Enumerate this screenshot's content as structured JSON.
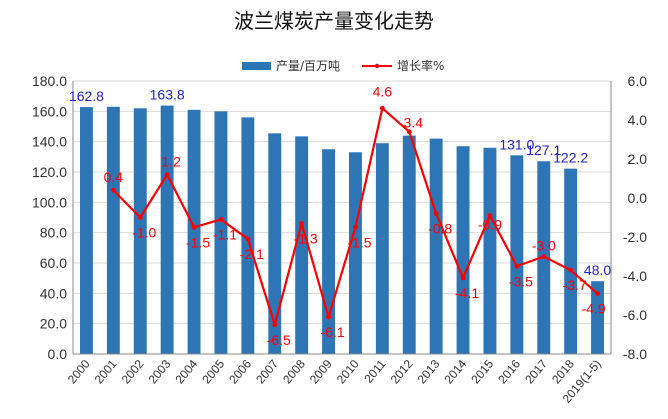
{
  "colors": {
    "bar": "#2E75B6",
    "line": "#FF0000",
    "bar_label": "#1F1FD0",
    "line_label": "#FF0000",
    "grid": "#D9D9D9"
  },
  "chart_data": {
    "type": "bar",
    "title": "波兰煤炭产量变化走势",
    "categories": [
      "2000",
      "2001",
      "2002",
      "2003",
      "2004",
      "2005",
      "2006",
      "2007",
      "2008",
      "2009",
      "2010",
      "2011",
      "2012",
      "2013",
      "2014",
      "2015",
      "2016",
      "2017",
      "2018",
      "2019(1-5)"
    ],
    "y_left": {
      "ticks": [
        "0.0",
        "20.0",
        "40.0",
        "60.0",
        "80.0",
        "100.0",
        "120.0",
        "140.0",
        "160.0",
        "180.0"
      ],
      "ylim": [
        0,
        180
      ]
    },
    "y_right": {
      "ticks": [
        "-8.0",
        "-6.0",
        "-4.0",
        "-2.0",
        "0.0",
        "2.0",
        "4.0",
        "6.0"
      ],
      "ylim": [
        -8,
        6
      ]
    },
    "grid": true,
    "legend_position": "top",
    "series": [
      {
        "name": "产量/百万吨",
        "kind": "bar",
        "axis": "left",
        "values": [
          162.8,
          163.0,
          162.0,
          163.8,
          161.0,
          160.0,
          156.0,
          145.5,
          143.5,
          135.0,
          133.0,
          139.0,
          144.0,
          142.0,
          137.0,
          136.0,
          131.0,
          127.1,
          122.2,
          48.0
        ],
        "labels": [
          "162.8",
          "",
          "",
          "163.8",
          "",
          "",
          "",
          "",
          "",
          "",
          "",
          "",
          "",
          "",
          "",
          "",
          "131.0",
          "127.1",
          "122.2",
          "48.0"
        ]
      },
      {
        "name": "增长率%",
        "kind": "line",
        "axis": "right",
        "values": [
          null,
          0.4,
          -1.0,
          1.2,
          -1.5,
          -1.1,
          -2.1,
          -6.5,
          -1.3,
          -6.1,
          -1.5,
          4.6,
          3.4,
          -0.8,
          -4.1,
          -0.9,
          -3.5,
          -3.0,
          -3.7,
          -4.9
        ],
        "labels": [
          "",
          "0.4",
          "-1.0",
          "1.2",
          "-1.5",
          "-1.1",
          "-2.1",
          "-6.5",
          "-1.3",
          "-6.1",
          "-1.5",
          "4.6",
          "3.4",
          "-0.8",
          "-4.1",
          "-0.9",
          "-3.5",
          "-3.0",
          "-3.7",
          "-4.9"
        ]
      }
    ]
  }
}
